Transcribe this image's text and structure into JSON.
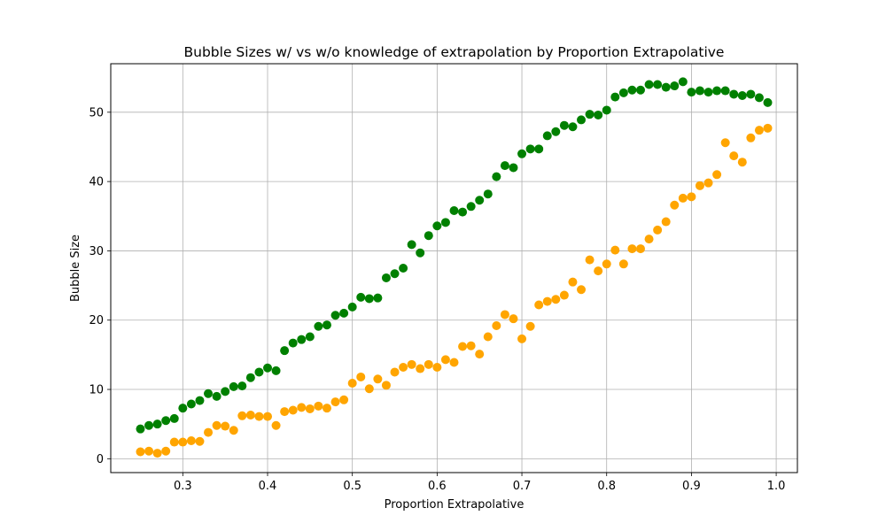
{
  "chart_data": {
    "type": "scatter",
    "title": "Bubble Sizes w/ vs w/o knowledge of extrapolation by Proportion Extrapolative",
    "xlabel": "Proportion Extrapolative",
    "ylabel": "Bubble Size",
    "xlim": [
      0.215,
      1.025
    ],
    "ylim": [
      -2.0,
      57.0
    ],
    "xticks": [
      0.3,
      0.4,
      0.5,
      0.6,
      0.7,
      0.8,
      0.9,
      1.0
    ],
    "xtick_labels": [
      "0.3",
      "0.4",
      "0.5",
      "0.6",
      "0.7",
      "0.8",
      "0.9",
      "1.0"
    ],
    "yticks": [
      0,
      10,
      20,
      30,
      40,
      50
    ],
    "ytick_labels": [
      "0",
      "10",
      "20",
      "30",
      "40",
      "50"
    ],
    "grid": true,
    "x": [
      0.25,
      0.26,
      0.27,
      0.28,
      0.29,
      0.3,
      0.31,
      0.32,
      0.33,
      0.34,
      0.35,
      0.36,
      0.37,
      0.38,
      0.39,
      0.4,
      0.41,
      0.42,
      0.43,
      0.44,
      0.45,
      0.46,
      0.47,
      0.48,
      0.49,
      0.5,
      0.51,
      0.52,
      0.53,
      0.54,
      0.55,
      0.56,
      0.57,
      0.58,
      0.59,
      0.6,
      0.61,
      0.62,
      0.63,
      0.64,
      0.65,
      0.66,
      0.67,
      0.68,
      0.69,
      0.7,
      0.71,
      0.72,
      0.73,
      0.74,
      0.75,
      0.76,
      0.77,
      0.78,
      0.79,
      0.8,
      0.81,
      0.82,
      0.83,
      0.84,
      0.85,
      0.86,
      0.87,
      0.88,
      0.89,
      0.9,
      0.91,
      0.92,
      0.93,
      0.94,
      0.95,
      0.96,
      0.97,
      0.98,
      0.99
    ],
    "series": [
      {
        "color": "#008000",
        "values": [
          4.3,
          4.8,
          5.0,
          5.5,
          5.8,
          7.3,
          7.9,
          8.4,
          9.4,
          9.0,
          9.7,
          10.4,
          10.5,
          11.7,
          12.5,
          13.1,
          12.7,
          15.6,
          16.7,
          17.2,
          17.6,
          19.1,
          19.3,
          20.7,
          21.0,
          21.9,
          23.3,
          23.1,
          23.2,
          26.1,
          26.7,
          27.5,
          30.9,
          29.7,
          32.2,
          33.6,
          34.1,
          35.8,
          35.6,
          36.4,
          37.3,
          38.2,
          40.7,
          42.3,
          42.0,
          44.0,
          44.7,
          44.7,
          46.6,
          47.2,
          48.1,
          47.9,
          48.9,
          49.7,
          49.6,
          50.3,
          52.2,
          52.8,
          53.2,
          53.2,
          54.0,
          54.0,
          53.6,
          53.8,
          54.4,
          52.9,
          53.1,
          52.9,
          53.1,
          53.1,
          52.6,
          52.4,
          52.6,
          52.1,
          51.4
        ]
      },
      {
        "color": "#ffa500",
        "values": [
          1.0,
          1.1,
          0.8,
          1.1,
          2.4,
          2.4,
          2.6,
          2.5,
          3.8,
          4.8,
          4.7,
          4.1,
          6.2,
          6.3,
          6.1,
          6.1,
          4.8,
          6.8,
          7.0,
          7.4,
          7.2,
          7.6,
          7.3,
          8.2,
          8.5,
          10.9,
          11.8,
          10.1,
          11.5,
          10.6,
          12.5,
          13.2,
          13.6,
          13.0,
          13.6,
          13.2,
          14.3,
          13.9,
          16.2,
          16.3,
          15.1,
          17.6,
          19.2,
          20.8,
          20.2,
          17.3,
          19.1,
          22.2,
          22.7,
          23.0,
          23.6,
          25.5,
          24.4,
          28.7,
          27.1,
          28.1,
          30.1,
          28.1,
          30.3,
          30.3,
          31.7,
          33.0,
          34.2,
          36.6,
          37.6,
          37.8,
          39.4,
          39.8,
          41.0,
          45.6,
          43.7,
          42.8,
          46.3,
          47.4,
          47.7
        ]
      }
    ]
  }
}
